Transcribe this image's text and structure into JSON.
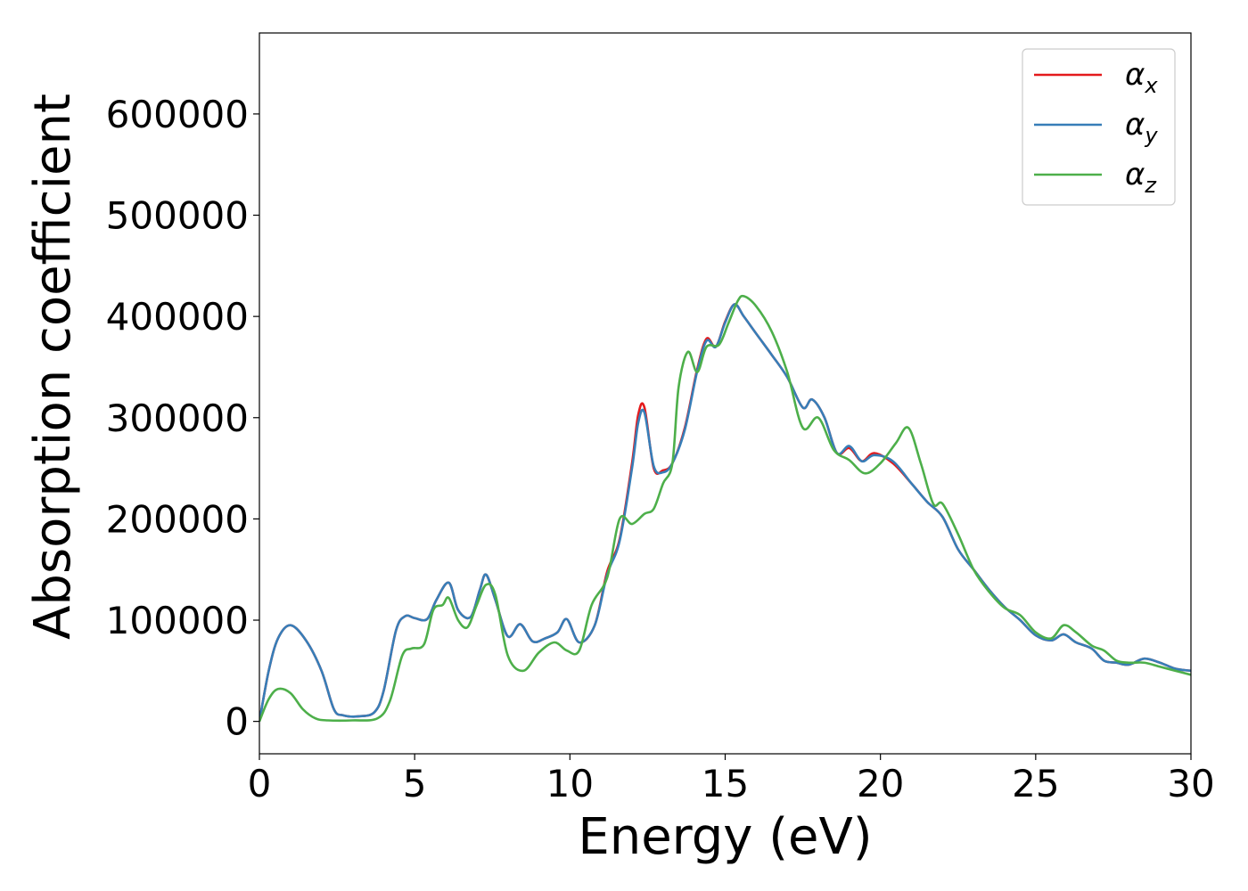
{
  "chart_data": {
    "type": "line",
    "title": "",
    "xlabel": "Energy (eV)",
    "ylabel": "Absorption coefficient",
    "xlim": [
      0,
      30
    ],
    "ylim": [
      -32000,
      680000
    ],
    "xticks": [
      0,
      5,
      10,
      15,
      20,
      25,
      30
    ],
    "yticks": [
      0,
      100000,
      200000,
      300000,
      400000,
      500000,
      600000
    ],
    "grid": false,
    "legend_position": "top-right",
    "series": [
      {
        "name": "α_x",
        "label_main": "α",
        "label_sub": "x",
        "color": "#e41a1c",
        "x": [
          0,
          0.3,
          0.6,
          1.0,
          1.5,
          2.0,
          2.4,
          2.7,
          3.2,
          3.7,
          4.0,
          4.4,
          4.7,
          5.0,
          5.4,
          5.7,
          6.1,
          6.4,
          6.8,
          7.1,
          7.3,
          7.6,
          8.0,
          8.4,
          8.8,
          9.2,
          9.6,
          9.9,
          10.3,
          10.8,
          11.2,
          11.6,
          12.0,
          12.2,
          12.4,
          12.7,
          13.0,
          13.3,
          13.7,
          14.1,
          14.4,
          14.7,
          15.0,
          15.3,
          15.6,
          16.0,
          16.5,
          17.0,
          17.5,
          17.8,
          18.2,
          18.6,
          19.0,
          19.4,
          19.8,
          20.4,
          21.0,
          21.5,
          22.0,
          22.5,
          23.0,
          23.5,
          24.0,
          24.5,
          25.0,
          25.5,
          25.9,
          26.3,
          26.8,
          27.2,
          27.6,
          28.0,
          28.5,
          29.0,
          29.5,
          30.0
        ],
        "y": [
          0,
          50000,
          82000,
          95000,
          80000,
          50000,
          12000,
          6000,
          5000,
          9000,
          30000,
          90000,
          104000,
          102000,
          101000,
          120000,
          137000,
          110000,
          103000,
          130000,
          145000,
          120000,
          84000,
          96000,
          79000,
          82000,
          88000,
          101000,
          78000,
          95000,
          148000,
          180000,
          255000,
          303000,
          310000,
          250000,
          248000,
          255000,
          290000,
          348000,
          378000,
          370000,
          395000,
          412000,
          400000,
          383000,
          362000,
          340000,
          310000,
          318000,
          300000,
          265000,
          270000,
          257000,
          265000,
          255000,
          235000,
          217000,
          202000,
          170000,
          150000,
          130000,
          113000,
          100000,
          85000,
          80000,
          86000,
          78000,
          72000,
          60000,
          58000,
          56000,
          62000,
          58000,
          52000,
          50000
        ]
      },
      {
        "name": "α_y",
        "label_main": "α",
        "label_sub": "y",
        "color": "#377eb8",
        "x": [
          0,
          0.3,
          0.6,
          1.0,
          1.5,
          2.0,
          2.4,
          2.7,
          3.2,
          3.7,
          4.0,
          4.4,
          4.7,
          5.0,
          5.4,
          5.7,
          6.1,
          6.4,
          6.8,
          7.1,
          7.3,
          7.6,
          8.0,
          8.4,
          8.8,
          9.2,
          9.6,
          9.9,
          10.3,
          10.8,
          11.2,
          11.6,
          12.0,
          12.2,
          12.4,
          12.7,
          13.0,
          13.3,
          13.7,
          14.1,
          14.4,
          14.7,
          15.0,
          15.3,
          15.6,
          16.0,
          16.5,
          17.0,
          17.5,
          17.8,
          18.2,
          18.6,
          19.0,
          19.4,
          19.8,
          20.4,
          21.0,
          21.5,
          22.0,
          22.5,
          23.0,
          23.5,
          24.0,
          24.5,
          25.0,
          25.5,
          25.9,
          26.3,
          26.8,
          27.2,
          27.6,
          28.0,
          28.5,
          29.0,
          29.5,
          30.0
        ],
        "y": [
          0,
          50000,
          82000,
          95000,
          80000,
          50000,
          12000,
          6000,
          5000,
          9000,
          30000,
          90000,
          104000,
          102000,
          101000,
          120000,
          137000,
          110000,
          103000,
          130000,
          145000,
          120000,
          84000,
          96000,
          79000,
          82000,
          88000,
          101000,
          78000,
          95000,
          145000,
          178000,
          250000,
          295000,
          305000,
          252000,
          246000,
          255000,
          288000,
          346000,
          376000,
          370000,
          394000,
          412000,
          400000,
          383000,
          362000,
          340000,
          310000,
          318000,
          300000,
          265000,
          272000,
          257000,
          263000,
          257000,
          235000,
          217000,
          202000,
          170000,
          150000,
          130000,
          113000,
          100000,
          85000,
          80000,
          86000,
          78000,
          72000,
          60000,
          58000,
          56000,
          62000,
          58000,
          52000,
          50000
        ]
      },
      {
        "name": "α_z",
        "label_main": "α",
        "label_sub": "z",
        "color": "#4daf4a",
        "x": [
          0,
          0.3,
          0.6,
          1.0,
          1.4,
          1.8,
          2.2,
          3.0,
          3.8,
          4.2,
          4.6,
          4.9,
          5.3,
          5.6,
          5.9,
          6.1,
          6.4,
          6.7,
          7.0,
          7.3,
          7.6,
          8.0,
          8.5,
          9.0,
          9.5,
          9.9,
          10.3,
          10.7,
          11.2,
          11.6,
          12.0,
          12.4,
          12.7,
          13.0,
          13.3,
          13.5,
          13.8,
          14.1,
          14.4,
          14.8,
          15.1,
          15.4,
          15.6,
          16.0,
          16.5,
          17.0,
          17.5,
          18.0,
          18.5,
          19.0,
          19.5,
          20.0,
          20.5,
          20.9,
          21.3,
          21.7,
          22.0,
          22.5,
          23.0,
          23.5,
          24.0,
          24.5,
          25.0,
          25.5,
          25.9,
          26.3,
          26.8,
          27.2,
          27.6,
          28.0,
          28.5,
          29.0,
          29.5,
          30.0
        ],
        "y": [
          0,
          22000,
          32000,
          28000,
          12000,
          3000,
          1000,
          1000,
          3000,
          20000,
          65000,
          72000,
          76000,
          110000,
          115000,
          122000,
          100000,
          93000,
          115000,
          135000,
          125000,
          65000,
          50000,
          68000,
          78000,
          70000,
          70000,
          115000,
          142000,
          200000,
          195000,
          205000,
          210000,
          235000,
          255000,
          330000,
          365000,
          345000,
          370000,
          372000,
          393000,
          415000,
          420000,
          410000,
          385000,
          345000,
          290000,
          300000,
          268000,
          258000,
          245000,
          255000,
          275000,
          290000,
          255000,
          215000,
          215000,
          185000,
          150000,
          128000,
          112000,
          105000,
          88000,
          82000,
          95000,
          88000,
          75000,
          70000,
          60000,
          58000,
          58000,
          54000,
          50000,
          46000
        ]
      }
    ]
  }
}
